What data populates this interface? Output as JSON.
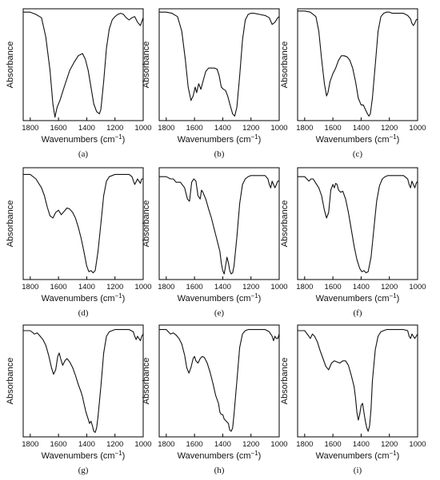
{
  "figure": {
    "xlabel_main": "Wavenumbers (cm",
    "xlabel_sup": "−1",
    "xlabel_close": ")",
    "ylabel": "Absorbance"
  },
  "chart_data": [
    {
      "type": "line",
      "panel": "(a)",
      "x_reversed": true,
      "xlim": [
        1000,
        1850
      ],
      "ylim": [
        0,
        1
      ],
      "x_ticks": [
        1800,
        1600,
        1400,
        1200,
        1000
      ],
      "xlabel": "Wavenumbers (cm−1)",
      "ylabel": "Absorbance",
      "grid": false,
      "x": [
        1850,
        1800,
        1760,
        1720,
        1690,
        1660,
        1640,
        1625,
        1610,
        1590,
        1560,
        1520,
        1490,
        1460,
        1430,
        1410,
        1390,
        1370,
        1350,
        1330,
        1310,
        1300,
        1280,
        1260,
        1240,
        1220,
        1200,
        1180,
        1160,
        1140,
        1120,
        1100,
        1080,
        1060,
        1040,
        1020,
        1000
      ],
      "y": [
        0.97,
        0.97,
        0.95,
        0.92,
        0.75,
        0.45,
        0.15,
        0.03,
        0.12,
        0.18,
        0.3,
        0.45,
        0.52,
        0.58,
        0.6,
        0.55,
        0.45,
        0.3,
        0.15,
        0.08,
        0.06,
        0.1,
        0.35,
        0.65,
        0.82,
        0.9,
        0.93,
        0.95,
        0.96,
        0.95,
        0.92,
        0.9,
        0.92,
        0.93,
        0.88,
        0.85,
        0.92
      ]
    },
    {
      "type": "line",
      "panel": "(b)",
      "x_reversed": true,
      "xlim": [
        1000,
        1850
      ],
      "ylim": [
        0,
        1
      ],
      "x_ticks": [
        1800,
        1600,
        1400,
        1200,
        1000
      ],
      "xlabel": "Wavenumbers (cm−1)",
      "ylabel": "Absorbance",
      "grid": false,
      "x": [
        1850,
        1800,
        1760,
        1720,
        1690,
        1665,
        1645,
        1625,
        1610,
        1595,
        1585,
        1570,
        1555,
        1540,
        1520,
        1500,
        1480,
        1460,
        1440,
        1425,
        1410,
        1395,
        1380,
        1365,
        1350,
        1330,
        1315,
        1300,
        1280,
        1260,
        1240,
        1220,
        1200,
        1180,
        1140,
        1100,
        1070,
        1050,
        1030,
        1010,
        1000
      ],
      "y": [
        0.97,
        0.97,
        0.96,
        0.93,
        0.8,
        0.55,
        0.3,
        0.18,
        0.22,
        0.3,
        0.25,
        0.33,
        0.28,
        0.35,
        0.44,
        0.47,
        0.47,
        0.47,
        0.46,
        0.4,
        0.3,
        0.28,
        0.27,
        0.22,
        0.15,
        0.06,
        0.04,
        0.12,
        0.4,
        0.72,
        0.9,
        0.95,
        0.96,
        0.96,
        0.95,
        0.94,
        0.92,
        0.86,
        0.88,
        0.92,
        0.93
      ]
    },
    {
      "type": "line",
      "panel": "(c)",
      "x_reversed": true,
      "xlim": [
        1000,
        1850
      ],
      "ylim": [
        0,
        1
      ],
      "x_ticks": [
        1800,
        1600,
        1400,
        1200,
        1000
      ],
      "xlabel": "Wavenumbers (cm−1)",
      "ylabel": "Absorbance",
      "grid": false,
      "x": [
        1850,
        1800,
        1760,
        1720,
        1700,
        1680,
        1660,
        1645,
        1635,
        1620,
        1600,
        1580,
        1560,
        1540,
        1520,
        1500,
        1480,
        1460,
        1440,
        1420,
        1400,
        1385,
        1370,
        1355,
        1345,
        1335,
        1320,
        1300,
        1280,
        1260,
        1240,
        1220,
        1200,
        1180,
        1140,
        1100,
        1070,
        1050,
        1040,
        1030,
        1020,
        1010,
        1000
      ],
      "y": [
        0.98,
        0.98,
        0.97,
        0.93,
        0.8,
        0.55,
        0.33,
        0.22,
        0.25,
        0.35,
        0.42,
        0.47,
        0.54,
        0.58,
        0.58,
        0.57,
        0.54,
        0.47,
        0.35,
        0.2,
        0.14,
        0.14,
        0.1,
        0.06,
        0.04,
        0.06,
        0.2,
        0.5,
        0.8,
        0.93,
        0.96,
        0.97,
        0.97,
        0.96,
        0.96,
        0.96,
        0.94,
        0.91,
        0.87,
        0.85,
        0.87,
        0.9,
        0.91
      ]
    },
    {
      "type": "line",
      "panel": "(d)",
      "x_reversed": true,
      "xlim": [
        1000,
        1850
      ],
      "ylim": [
        0,
        1
      ],
      "x_ticks": [
        1800,
        1600,
        1400,
        1200,
        1000
      ],
      "xlabel": "Wavenumbers (cm−1)",
      "ylabel": "Absorbance",
      "grid": false,
      "x": [
        1850,
        1800,
        1760,
        1720,
        1700,
        1680,
        1660,
        1640,
        1620,
        1600,
        1580,
        1560,
        1540,
        1520,
        1500,
        1480,
        1460,
        1440,
        1420,
        1400,
        1385,
        1370,
        1355,
        1340,
        1320,
        1300,
        1280,
        1260,
        1240,
        1220,
        1200,
        1180,
        1140,
        1100,
        1080,
        1060,
        1040,
        1030,
        1020,
        1010,
        1000
      ],
      "y": [
        0.94,
        0.94,
        0.9,
        0.82,
        0.75,
        0.65,
        0.57,
        0.55,
        0.6,
        0.62,
        0.58,
        0.61,
        0.64,
        0.63,
        0.6,
        0.55,
        0.47,
        0.37,
        0.25,
        0.12,
        0.07,
        0.08,
        0.06,
        0.08,
        0.25,
        0.5,
        0.75,
        0.88,
        0.92,
        0.93,
        0.94,
        0.94,
        0.94,
        0.94,
        0.92,
        0.85,
        0.9,
        0.88,
        0.86,
        0.9,
        0.9
      ]
    },
    {
      "type": "line",
      "panel": "(e)",
      "x_reversed": true,
      "xlim": [
        1000,
        1850
      ],
      "ylim": [
        0,
        1
      ],
      "x_ticks": [
        1800,
        1600,
        1400,
        1200,
        1000
      ],
      "xlabel": "Wavenumbers (cm−1)",
      "ylabel": "Absorbance",
      "grid": false,
      "x": [
        1850,
        1800,
        1770,
        1750,
        1730,
        1700,
        1670,
        1650,
        1635,
        1620,
        1605,
        1590,
        1575,
        1560,
        1550,
        1540,
        1520,
        1500,
        1480,
        1460,
        1440,
        1420,
        1410,
        1400,
        1390,
        1380,
        1370,
        1360,
        1350,
        1340,
        1330,
        1320,
        1300,
        1280,
        1260,
        1240,
        1220,
        1200,
        1180,
        1140,
        1100,
        1080,
        1070,
        1060,
        1050,
        1040,
        1030,
        1020,
        1010,
        1000
      ],
      "y": [
        0.92,
        0.92,
        0.9,
        0.9,
        0.87,
        0.87,
        0.82,
        0.72,
        0.7,
        0.87,
        0.9,
        0.88,
        0.75,
        0.72,
        0.8,
        0.78,
        0.72,
        0.63,
        0.55,
        0.45,
        0.35,
        0.25,
        0.15,
        0.08,
        0.05,
        0.12,
        0.2,
        0.15,
        0.08,
        0.05,
        0.06,
        0.12,
        0.38,
        0.68,
        0.85,
        0.9,
        0.92,
        0.93,
        0.93,
        0.93,
        0.93,
        0.9,
        0.85,
        0.82,
        0.88,
        0.85,
        0.82,
        0.85,
        0.88,
        0.88
      ]
    },
    {
      "type": "line",
      "panel": "(f)",
      "x_reversed": true,
      "xlim": [
        1000,
        1850
      ],
      "ylim": [
        0,
        1
      ],
      "x_ticks": [
        1800,
        1600,
        1400,
        1200,
        1000
      ],
      "xlabel": "Wavenumbers (cm−1)",
      "ylabel": "Absorbance",
      "grid": false,
      "x": [
        1850,
        1800,
        1770,
        1755,
        1740,
        1720,
        1700,
        1680,
        1660,
        1645,
        1630,
        1615,
        1600,
        1590,
        1580,
        1570,
        1560,
        1545,
        1530,
        1510,
        1490,
        1470,
        1450,
        1430,
        1410,
        1395,
        1380,
        1365,
        1350,
        1330,
        1310,
        1290,
        1270,
        1250,
        1230,
        1210,
        1180,
        1140,
        1100,
        1070,
        1060,
        1050,
        1040,
        1030,
        1020,
        1010,
        1000
      ],
      "y": [
        0.92,
        0.92,
        0.88,
        0.9,
        0.9,
        0.86,
        0.82,
        0.75,
        0.62,
        0.55,
        0.6,
        0.8,
        0.85,
        0.82,
        0.86,
        0.85,
        0.8,
        0.78,
        0.79,
        0.72,
        0.6,
        0.45,
        0.3,
        0.18,
        0.1,
        0.07,
        0.08,
        0.06,
        0.07,
        0.2,
        0.45,
        0.7,
        0.84,
        0.9,
        0.92,
        0.93,
        0.93,
        0.93,
        0.93,
        0.9,
        0.85,
        0.82,
        0.88,
        0.85,
        0.82,
        0.86,
        0.88
      ]
    },
    {
      "type": "line",
      "panel": "(g)",
      "x_reversed": true,
      "xlim": [
        1000,
        1850
      ],
      "ylim": [
        0,
        1
      ],
      "x_ticks": [
        1800,
        1600,
        1400,
        1200,
        1000
      ],
      "xlabel": "Wavenumbers (cm−1)",
      "ylabel": "Absorbance",
      "grid": false,
      "x": [
        1850,
        1800,
        1770,
        1750,
        1730,
        1710,
        1690,
        1670,
        1650,
        1635,
        1620,
        1605,
        1595,
        1585,
        1570,
        1555,
        1540,
        1520,
        1500,
        1480,
        1460,
        1440,
        1430,
        1420,
        1405,
        1390,
        1380,
        1370,
        1360,
        1350,
        1340,
        1330,
        1320,
        1300,
        1280,
        1260,
        1240,
        1220,
        1200,
        1180,
        1140,
        1100,
        1070,
        1060,
        1050,
        1040,
        1030,
        1020,
        1010,
        1000
      ],
      "y": [
        0.95,
        0.95,
        0.92,
        0.93,
        0.9,
        0.87,
        0.82,
        0.73,
        0.62,
        0.56,
        0.6,
        0.72,
        0.75,
        0.7,
        0.64,
        0.68,
        0.7,
        0.67,
        0.62,
        0.55,
        0.47,
        0.4,
        0.36,
        0.3,
        0.22,
        0.16,
        0.12,
        0.14,
        0.1,
        0.05,
        0.04,
        0.08,
        0.18,
        0.45,
        0.75,
        0.9,
        0.94,
        0.95,
        0.96,
        0.96,
        0.96,
        0.96,
        0.94,
        0.9,
        0.87,
        0.9,
        0.88,
        0.86,
        0.9,
        0.92
      ]
    },
    {
      "type": "line",
      "panel": "(h)",
      "x_reversed": true,
      "xlim": [
        1000,
        1850
      ],
      "ylim": [
        0,
        1
      ],
      "x_ticks": [
        1800,
        1600,
        1400,
        1200,
        1000
      ],
      "xlabel": "Wavenumbers (cm−1)",
      "ylabel": "Absorbance",
      "grid": false,
      "x": [
        1850,
        1800,
        1770,
        1750,
        1730,
        1710,
        1690,
        1670,
        1655,
        1640,
        1625,
        1610,
        1600,
        1590,
        1575,
        1560,
        1545,
        1530,
        1510,
        1490,
        1470,
        1450,
        1430,
        1420,
        1410,
        1400,
        1390,
        1375,
        1360,
        1350,
        1340,
        1330,
        1320,
        1300,
        1280,
        1260,
        1240,
        1220,
        1200,
        1180,
        1140,
        1100,
        1070,
        1050,
        1040,
        1030,
        1020,
        1010,
        1000
      ],
      "y": [
        0.96,
        0.96,
        0.92,
        0.93,
        0.91,
        0.88,
        0.83,
        0.73,
        0.62,
        0.57,
        0.62,
        0.7,
        0.72,
        0.68,
        0.66,
        0.7,
        0.72,
        0.71,
        0.66,
        0.58,
        0.48,
        0.37,
        0.3,
        0.22,
        0.2,
        0.2,
        0.16,
        0.14,
        0.12,
        0.06,
        0.05,
        0.08,
        0.2,
        0.5,
        0.8,
        0.92,
        0.95,
        0.96,
        0.96,
        0.96,
        0.96,
        0.96,
        0.94,
        0.9,
        0.86,
        0.9,
        0.88,
        0.88,
        0.92
      ]
    },
    {
      "type": "line",
      "panel": "(i)",
      "x_reversed": true,
      "xlim": [
        1000,
        1850
      ],
      "ylim": [
        0,
        1
      ],
      "x_ticks": [
        1800,
        1600,
        1400,
        1200,
        1000
      ],
      "xlabel": "Wavenumbers (cm−1)",
      "ylabel": "Absorbance",
      "grid": false,
      "x": [
        1850,
        1800,
        1770,
        1760,
        1745,
        1730,
        1710,
        1690,
        1670,
        1650,
        1630,
        1610,
        1590,
        1570,
        1550,
        1530,
        1510,
        1490,
        1470,
        1450,
        1440,
        1430,
        1420,
        1410,
        1400,
        1390,
        1380,
        1370,
        1360,
        1350,
        1340,
        1330,
        1320,
        1300,
        1280,
        1260,
        1240,
        1220,
        1200,
        1180,
        1140,
        1100,
        1070,
        1060,
        1050,
        1040,
        1030,
        1020,
        1010,
        1000
      ],
      "y": [
        0.95,
        0.95,
        0.9,
        0.88,
        0.92,
        0.9,
        0.85,
        0.77,
        0.7,
        0.63,
        0.6,
        0.66,
        0.68,
        0.67,
        0.66,
        0.68,
        0.68,
        0.64,
        0.55,
        0.45,
        0.35,
        0.22,
        0.15,
        0.2,
        0.28,
        0.3,
        0.22,
        0.14,
        0.08,
        0.05,
        0.1,
        0.25,
        0.5,
        0.78,
        0.9,
        0.94,
        0.95,
        0.96,
        0.96,
        0.96,
        0.96,
        0.96,
        0.95,
        0.9,
        0.88,
        0.92,
        0.9,
        0.88,
        0.9,
        0.92
      ]
    }
  ]
}
